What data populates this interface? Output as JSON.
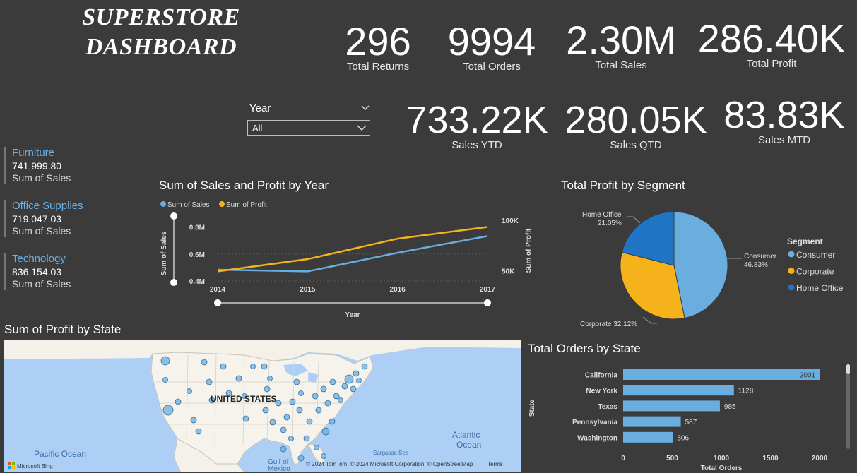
{
  "header": {
    "title_line1": "SUPERSTORE",
    "title_line2": "DASHBOARD"
  },
  "kpis": [
    {
      "value": "296",
      "label": "Total Returns"
    },
    {
      "value": "9994",
      "label": "Total Orders"
    },
    {
      "value": "2.30M",
      "label": "Total Sales"
    },
    {
      "value": "286.40K",
      "label": "Total Profit"
    },
    {
      "value": "733.22K",
      "label": "Sales YTD"
    },
    {
      "value": "280.05K",
      "label": "Sales QTD"
    },
    {
      "value": "83.83K",
      "label": "Sales MTD"
    }
  ],
  "slicer": {
    "label": "Year",
    "selected": "All"
  },
  "categories": [
    {
      "name": "Furniture",
      "value": "741,999.80",
      "measure": "Sum of Sales"
    },
    {
      "name": "Office Supplies",
      "value": "719,047.03",
      "measure": "Sum of Sales"
    },
    {
      "name": "Technology",
      "value": "836,154.03",
      "measure": "Sum of Sales"
    }
  ],
  "colors": {
    "sales": "#6aaee0",
    "profit": "#f5b21b",
    "home_office": "#1f74c4",
    "consumer": "#6aaee0",
    "corporate": "#f5b21b",
    "bar": "#6aaee0"
  },
  "chart_data": [
    {
      "type": "line",
      "title": "Sum of Sales and Profit by Year",
      "xlabel": "Year",
      "ylabel": "Sum of Sales",
      "y2label": "Sum of Profit",
      "x": [
        "2014",
        "2015",
        "2016",
        "2017"
      ],
      "y_ticks": [
        "0.4M",
        "0.6M",
        "0.8M"
      ],
      "y2_ticks": [
        "50K",
        "100K"
      ],
      "ylim": [
        0.4,
        0.85
      ],
      "y2lim": [
        40,
        100
      ],
      "series": [
        {
          "name": "Sum of Sales",
          "values": [
            0.484,
            0.471,
            0.609,
            0.733
          ],
          "axis": "left"
        },
        {
          "name": "Sum of Profit",
          "values": [
            49.5,
            61.6,
            81.8,
            93.4
          ],
          "axis": "right"
        }
      ]
    },
    {
      "type": "pie",
      "title": "Total Profit by Segment",
      "legend_title": "Segment",
      "labels": [
        "Consumer",
        "Corporate",
        "Home Office"
      ],
      "values": [
        46.83,
        32.12,
        21.05
      ],
      "slice_labels": [
        "Consumer\n46.83%",
        "Corporate 32.12%",
        "Home Office\n21.05%"
      ]
    },
    {
      "type": "bar",
      "title": "Total Orders by State",
      "xlabel": "Total Orders",
      "ylabel": "State",
      "categories": [
        "California",
        "New York",
        "Texas",
        "Pennsylvania",
        "Washington"
      ],
      "values": [
        2001,
        1128,
        985,
        587,
        506
      ],
      "x_ticks": [
        "0",
        "500",
        "1000",
        "1500",
        "2000"
      ],
      "xlim": [
        0,
        2000
      ]
    }
  ],
  "map": {
    "title": "Sum of Profit by State",
    "country_label": "UNITED STATES",
    "labels": {
      "pacific": "Pacific Ocean",
      "atlantic_1": "Atlantic",
      "atlantic_2": "Ocean",
      "sargasso": "Sargasso Sea",
      "gulf_1": "Gulf of",
      "gulf_2": "Mexico"
    },
    "credit": "© 2024 TomTom, © 2024 Microsoft Corporation, © OpenStreetMap",
    "terms": "Terms",
    "brand": "Microsoft Bing"
  }
}
